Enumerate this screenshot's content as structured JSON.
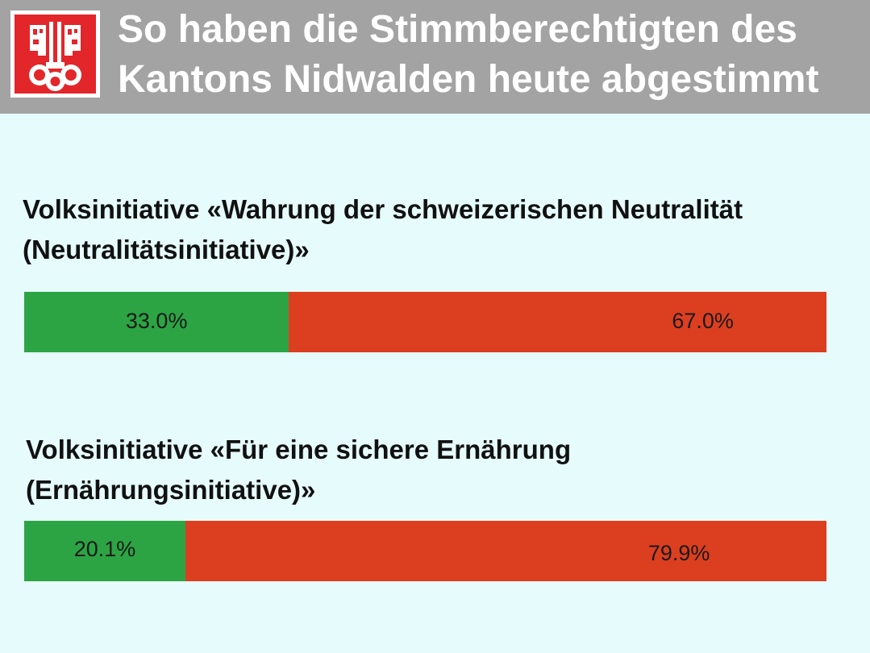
{
  "header": {
    "title_line1": "So haben die Stimmberechtigten des",
    "title_line2": "Kantons Nidwalden heute abgestimmt",
    "logo_icon": "nidwalden-coat-of-arms-icon",
    "background": "#a3a3a3",
    "logo_color": "#e3262a"
  },
  "chart_data": [
    {
      "type": "bar",
      "orientation": "horizontal-stacked",
      "title_line1": "Volksinitiative «Wahrung der schweizerischen Neutralität",
      "title_line2": "(Neutralitätsinitiative)»",
      "series": [
        {
          "value": 33.0,
          "label": "33.0%",
          "color": "#2ca444"
        },
        {
          "value": 67.0,
          "label": "67.0%",
          "color": "#dc3f20"
        }
      ]
    },
    {
      "type": "bar",
      "orientation": "horizontal-stacked",
      "title_line1": "Volksinitiative «Für eine sichere Ernährung",
      "title_line2": "(Ernährungsinitiative)»",
      "series": [
        {
          "value": 20.1,
          "label": "20.1%",
          "color": "#2ca444"
        },
        {
          "value": 79.9,
          "label": "79.9%",
          "color": "#dc3f20"
        }
      ]
    }
  ]
}
